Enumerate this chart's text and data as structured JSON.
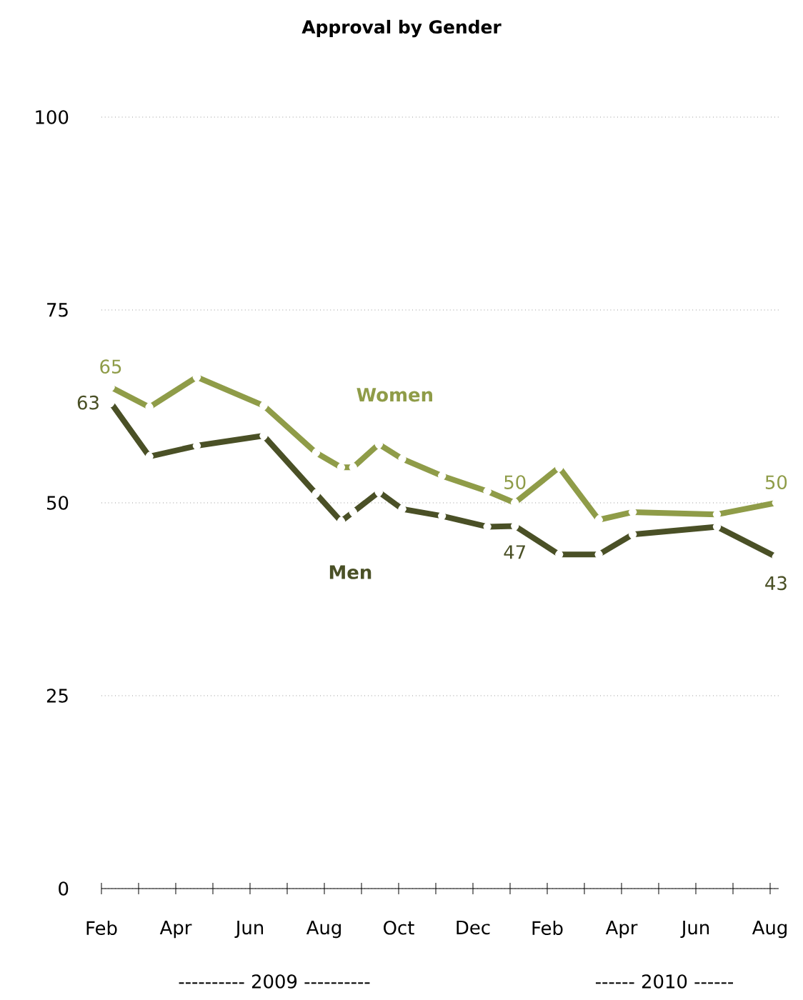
{
  "chart_data": {
    "type": "line",
    "title": "Approval by Gender",
    "x": [
      "2009-02-08",
      "2009-03-10",
      "2009-04-18",
      "2009-06-12",
      "2009-07-25",
      "2009-08-15",
      "2009-08-25",
      "2009-09-15",
      "2009-10-04",
      "2009-11-06",
      "2009-12-13",
      "2010-01-05",
      "2010-02-10",
      "2010-03-13",
      "2010-04-10",
      "2010-06-18",
      "2010-08-06"
    ],
    "series": [
      {
        "name": "Women",
        "color": "#8f9c48",
        "values": [
          65,
          62.4,
          66.3,
          62.6,
          56.5,
          54.6,
          54.6,
          57.6,
          55.7,
          53.5,
          51.5,
          50,
          54.6,
          47.8,
          48.8,
          48.5,
          50
        ],
        "value_labels": [
          "65",
          null,
          null,
          null,
          null,
          null,
          null,
          null,
          null,
          null,
          null,
          "50",
          null,
          null,
          null,
          null,
          "50"
        ]
      },
      {
        "name": "Men",
        "color": "#4a5026",
        "values": [
          63,
          56,
          57.4,
          58.7,
          51.2,
          47.6,
          48.8,
          51.4,
          49.2,
          48.3,
          46.9,
          47,
          43.3,
          43.3,
          45.9,
          46.9,
          43
        ],
        "value_labels": [
          "63",
          null,
          null,
          null,
          null,
          null,
          null,
          null,
          null,
          null,
          null,
          "47",
          null,
          null,
          null,
          null,
          "43"
        ]
      }
    ],
    "xlim": [
      "2009-02-01",
      "2010-08-08"
    ],
    "xticks": [
      {
        "value": "2009-02-01",
        "label": "Feb"
      },
      {
        "value": "2009-03-01",
        "label": null
      },
      {
        "value": "2009-04-01",
        "label": "Apr"
      },
      {
        "value": "2009-05-01",
        "label": null
      },
      {
        "value": "2009-06-01",
        "label": "Jun"
      },
      {
        "value": "2009-07-01",
        "label": null
      },
      {
        "value": "2009-08-01",
        "label": "Aug"
      },
      {
        "value": "2009-09-01",
        "label": null
      },
      {
        "value": "2009-10-01",
        "label": "Oct"
      },
      {
        "value": "2009-11-01",
        "label": null
      },
      {
        "value": "2009-12-01",
        "label": "Dec"
      },
      {
        "value": "2010-01-01",
        "label": null
      },
      {
        "value": "2010-02-01",
        "label": "Feb"
      },
      {
        "value": "2010-03-01",
        "label": null
      },
      {
        "value": "2010-04-01",
        "label": "Apr"
      },
      {
        "value": "2010-05-01",
        "label": null
      },
      {
        "value": "2010-06-01",
        "label": "Jun"
      },
      {
        "value": "2010-07-01",
        "label": null
      },
      {
        "value": "2010-08-01",
        "label": "Aug"
      }
    ],
    "ylim": [
      0,
      100
    ],
    "yticks": [
      0,
      25,
      50,
      75,
      100
    ],
    "grid": "y",
    "legend": false,
    "marker": "diamond",
    "line_style": "solid",
    "annotations": [
      "---------- 2009 ----------",
      "------ 2010 ------"
    ]
  }
}
